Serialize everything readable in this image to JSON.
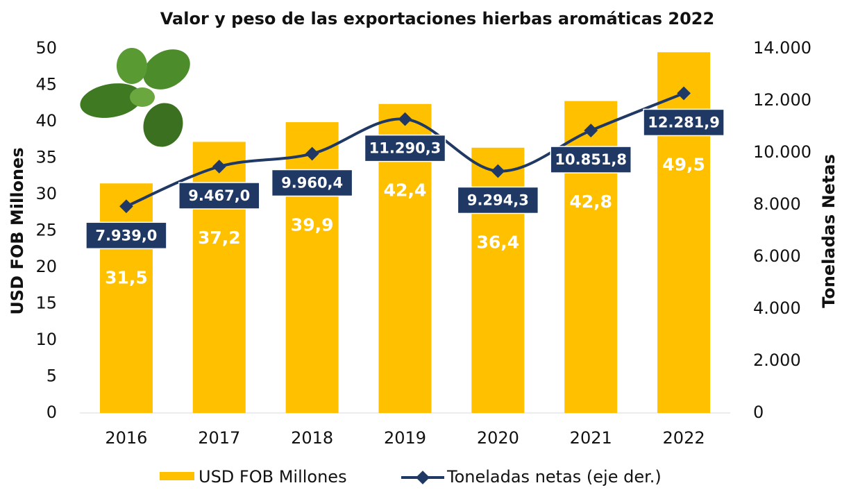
{
  "chart_data": {
    "type": "bar-line",
    "title": "Valor y peso de las exportaciones hierbas aromáticas 2022",
    "y_label": "USD FOB Millones",
    "y2_label": "Toneladas Netas",
    "categories": [
      "2016",
      "2017",
      "2018",
      "2019",
      "2020",
      "2021",
      "2022"
    ],
    "series": [
      {
        "name": "USD FOB Millones",
        "type": "bar",
        "color": "#ffc000",
        "axis": "y",
        "values": [
          31.5,
          37.2,
          39.9,
          42.4,
          36.4,
          42.8,
          49.5
        ],
        "value_labels": [
          "31,5",
          "37,2",
          "39,9",
          "42,4",
          "36,4",
          "42,8",
          "49,5"
        ]
      },
      {
        "name": "Toneladas netas (eje der.)",
        "type": "line",
        "color": "#1f3864",
        "axis": "y2",
        "values": [
          7939.0,
          9467.0,
          9960.4,
          11290.3,
          9294.3,
          10851.8,
          12281.9
        ],
        "value_labels": [
          "7.939,0",
          "9.467,0",
          "9.960,4",
          "11.290,3",
          "9.294,3",
          "10.851,8",
          "12.281,9"
        ]
      }
    ],
    "ylim": [
      0,
      50
    ],
    "yticks": [
      0,
      5,
      10,
      15,
      20,
      25,
      30,
      35,
      40,
      45,
      50
    ],
    "y2lim": [
      0,
      14000
    ],
    "y2ticks": [
      0,
      {
        "value": 2000,
        "label": "2.000"
      },
      {
        "value": 4000,
        "label": "4.000"
      },
      {
        "value": 6000,
        "label": "6.000"
      },
      {
        "value": 8000,
        "label": "8.000"
      },
      {
        "value": 10000,
        "label": "10.000"
      },
      {
        "value": 12000,
        "label": "12.000"
      },
      {
        "value": 14000,
        "label": "14.000"
      }
    ],
    "legend": "bottom"
  }
}
